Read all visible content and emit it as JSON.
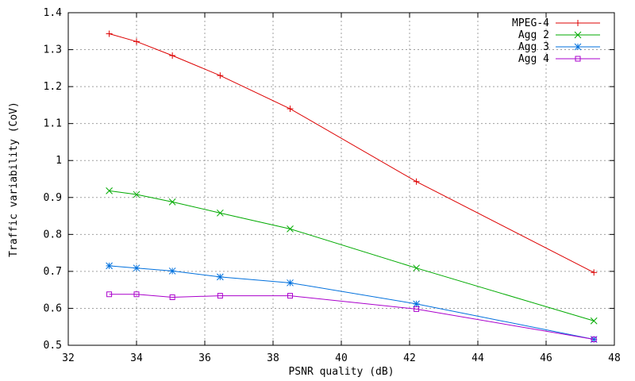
{
  "chart_data": {
    "type": "line",
    "title": "",
    "xlabel": "PSNR quality (dB)",
    "ylabel": "Traffic variability (CoV)",
    "xlim": [
      32,
      48
    ],
    "ylim": [
      0.5,
      1.4
    ],
    "xticks": [
      32,
      34,
      36,
      38,
      40,
      42,
      44,
      46,
      48
    ],
    "yticks": [
      0.5,
      0.6,
      0.7,
      0.8,
      0.9,
      1,
      1.1,
      1.2,
      1.3,
      1.4
    ],
    "xtick_labels": [
      "32",
      "34",
      "36",
      "38",
      "40",
      "42",
      "44",
      "46",
      "48"
    ],
    "ytick_labels": [
      "0.5",
      "0.6",
      "0.7",
      "0.8",
      "0.9",
      "1",
      "1.1",
      "1.2",
      "1.3",
      "1.4"
    ],
    "grid": true,
    "legend_position": "top-right",
    "series": [
      {
        "name": "MPEG-4",
        "color": "#dd0000",
        "marker": "plus",
        "x": [
          33.2,
          34.0,
          35.05,
          36.45,
          38.5,
          42.2,
          47.4
        ],
        "y": [
          1.343,
          1.322,
          1.284,
          1.23,
          1.14,
          0.943,
          0.697
        ]
      },
      {
        "name": "Agg 2",
        "color": "#00aa00",
        "marker": "x",
        "x": [
          33.2,
          34.0,
          35.05,
          36.45,
          38.5,
          42.2,
          47.4
        ],
        "y": [
          0.918,
          0.908,
          0.888,
          0.858,
          0.815,
          0.709,
          0.566
        ]
      },
      {
        "name": "Agg 3",
        "color": "#0070dd",
        "marker": "star",
        "x": [
          33.2,
          34.0,
          35.05,
          36.45,
          38.5,
          42.2,
          47.4
        ],
        "y": [
          0.715,
          0.709,
          0.701,
          0.685,
          0.669,
          0.612,
          0.516
        ]
      },
      {
        "name": "Agg 4",
        "color": "#aa00cc",
        "marker": "square",
        "x": [
          33.2,
          34.0,
          35.05,
          36.45,
          38.5,
          42.2,
          47.4
        ],
        "y": [
          0.638,
          0.638,
          0.63,
          0.634,
          0.634,
          0.598,
          0.516
        ]
      }
    ]
  }
}
